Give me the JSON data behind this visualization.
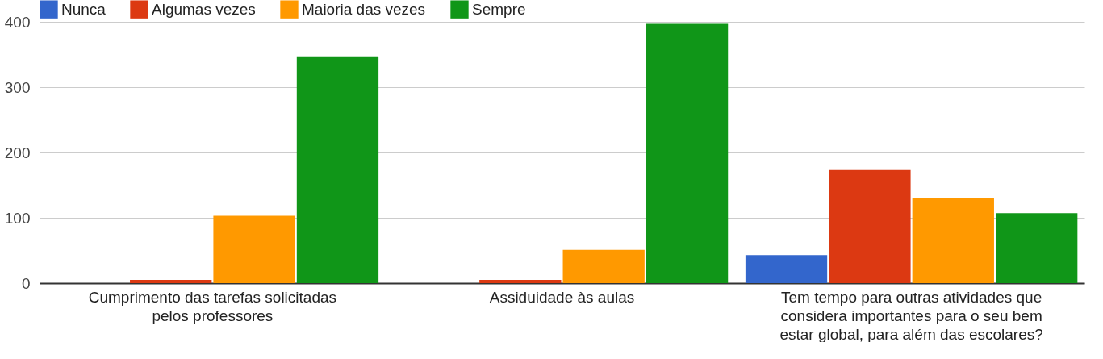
{
  "chart_data": {
    "type": "bar",
    "categories": [
      "Cumprimento das tarefas solicitadas pelos professores",
      "Assiduidade às aulas",
      "Tem tempo para outras atividades que considera importantes para o seu bem estar global, para além das escolares?"
    ],
    "series": [
      {
        "name": "Nunca",
        "color": "#3366cc",
        "values": [
          0,
          0,
          43
        ]
      },
      {
        "name": "Algumas vezes",
        "color": "#dc3912",
        "values": [
          5,
          5,
          173
        ]
      },
      {
        "name": "Maioria das vezes",
        "color": "#ff9900",
        "values": [
          103,
          51,
          131
        ]
      },
      {
        "name": "Sempre",
        "color": "#109618",
        "values": [
          346,
          397,
          107
        ]
      }
    ],
    "ylim": [
      0,
      400
    ],
    "yticks": [
      0,
      100,
      200,
      300,
      400
    ],
    "grid": "y",
    "legend": "top left"
  }
}
